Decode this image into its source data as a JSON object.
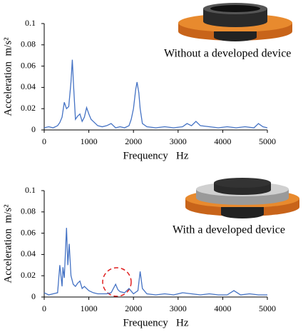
{
  "chart_data": [
    {
      "type": "line",
      "annotation": "Without a developed device",
      "xlabel": "Frequency   Hz",
      "ylabel": "Acceleration  m/s²",
      "xlim": [
        0,
        5000
      ],
      "ylim": [
        0,
        0.1
      ],
      "xticks": [
        0,
        1000,
        2000,
        3000,
        4000,
        5000
      ],
      "yticks": [
        0,
        0.02,
        0.04,
        0.06,
        0.08,
        0.1
      ],
      "color": "#4472c4",
      "x": [
        0,
        100,
        200,
        300,
        350,
        400,
        450,
        500,
        550,
        600,
        630,
        660,
        700,
        750,
        800,
        850,
        900,
        950,
        1000,
        1050,
        1100,
        1200,
        1300,
        1400,
        1500,
        1550,
        1600,
        1700,
        1800,
        1900,
        1950,
        2000,
        2050,
        2080,
        2120,
        2150,
        2200,
        2300,
        2500,
        2700,
        2900,
        3100,
        3200,
        3300,
        3400,
        3500,
        3700,
        3900,
        4100,
        4300,
        4500,
        4700,
        4800,
        4900,
        5000
      ],
      "values": [
        0.002,
        0.003,
        0.002,
        0.004,
        0.007,
        0.012,
        0.026,
        0.02,
        0.022,
        0.045,
        0.066,
        0.04,
        0.01,
        0.013,
        0.015,
        0.008,
        0.012,
        0.021,
        0.015,
        0.01,
        0.008,
        0.004,
        0.003,
        0.004,
        0.006,
        0.004,
        0.002,
        0.003,
        0.002,
        0.004,
        0.01,
        0.02,
        0.038,
        0.045,
        0.035,
        0.02,
        0.006,
        0.003,
        0.002,
        0.003,
        0.002,
        0.003,
        0.006,
        0.004,
        0.008,
        0.004,
        0.003,
        0.002,
        0.003,
        0.002,
        0.003,
        0.002,
        0.006,
        0.003,
        0.002
      ]
    },
    {
      "type": "line",
      "annotation": "With a developed device",
      "xlabel": "Frequency   Hz",
      "ylabel": "Acceleration  m/s²",
      "xlim": [
        0,
        5000
      ],
      "ylim": [
        0,
        0.1
      ],
      "xticks": [
        0,
        1000,
        2000,
        3000,
        4000,
        5000
      ],
      "yticks": [
        0,
        0.02,
        0.04,
        0.06,
        0.08,
        0.1
      ],
      "color": "#4472c4",
      "x": [
        0,
        100,
        200,
        300,
        350,
        400,
        420,
        450,
        500,
        530,
        560,
        600,
        650,
        700,
        750,
        800,
        850,
        900,
        1000,
        1100,
        1200,
        1300,
        1400,
        1500,
        1600,
        1650,
        1700,
        1800,
        1900,
        2000,
        2100,
        2150,
        2200,
        2300,
        2500,
        2700,
        2900,
        3100,
        3300,
        3500,
        3700,
        3900,
        4100,
        4250,
        4400,
        4600,
        4800,
        5000
      ],
      "values": [
        0.004,
        0.002,
        0.003,
        0.004,
        0.03,
        0.01,
        0.028,
        0.018,
        0.065,
        0.03,
        0.05,
        0.02,
        0.012,
        0.01,
        0.013,
        0.015,
        0.008,
        0.01,
        0.006,
        0.004,
        0.003,
        0.003,
        0.003,
        0.004,
        0.012,
        0.007,
        0.005,
        0.004,
        0.008,
        0.003,
        0.006,
        0.024,
        0.008,
        0.003,
        0.002,
        0.003,
        0.002,
        0.004,
        0.003,
        0.002,
        0.003,
        0.002,
        0.002,
        0.006,
        0.002,
        0.003,
        0.002,
        0.002
      ]
    }
  ]
}
